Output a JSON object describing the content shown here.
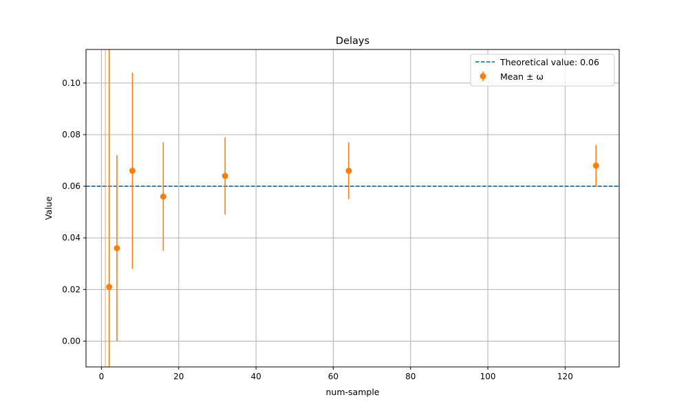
{
  "chart_data": {
    "type": "scatter",
    "title": "Delays",
    "xlabel": "num-sample",
    "ylabel": "Value",
    "xlim": [
      -4,
      134
    ],
    "ylim": [
      -0.01,
      0.113
    ],
    "xticks": [
      0,
      20,
      40,
      60,
      80,
      100,
      120
    ],
    "xtick_labels": [
      "0",
      "20",
      "40",
      "60",
      "80",
      100,
      "120"
    ],
    "yticks": [
      0.0,
      0.02,
      0.04,
      0.06,
      0.08,
      0.1
    ],
    "ytick_labels": [
      "0.00",
      "0.02",
      "0.04",
      "0.06",
      "0.08",
      "0.10"
    ],
    "grid": true,
    "legend_position": "top-right",
    "reference_line": {
      "name": "Theoretical value: 0.06",
      "y": 0.06,
      "style": "dashed",
      "color": "#1f77b4"
    },
    "series": [
      {
        "name": "Mean ± ω",
        "color": "#ff7f0e",
        "points": [
          {
            "x": 1,
            "y": 0.04,
            "ylow": -0.01,
            "yhigh": 0.113,
            "marker": false
          },
          {
            "x": 2,
            "y": 0.021,
            "ylow": -0.01,
            "yhigh": 0.113,
            "marker": true
          },
          {
            "x": 4,
            "y": 0.036,
            "ylow": 0.0,
            "yhigh": 0.072,
            "marker": true
          },
          {
            "x": 8,
            "y": 0.066,
            "ylow": 0.028,
            "yhigh": 0.104,
            "marker": true
          },
          {
            "x": 16,
            "y": 0.056,
            "ylow": 0.035,
            "yhigh": 0.077,
            "marker": true
          },
          {
            "x": 32,
            "y": 0.064,
            "ylow": 0.049,
            "yhigh": 0.079,
            "marker": true
          },
          {
            "x": 64,
            "y": 0.066,
            "ylow": 0.055,
            "yhigh": 0.077,
            "marker": true
          },
          {
            "x": 128,
            "y": 0.068,
            "ylow": 0.06,
            "yhigh": 0.076,
            "marker": true
          }
        ]
      }
    ]
  }
}
